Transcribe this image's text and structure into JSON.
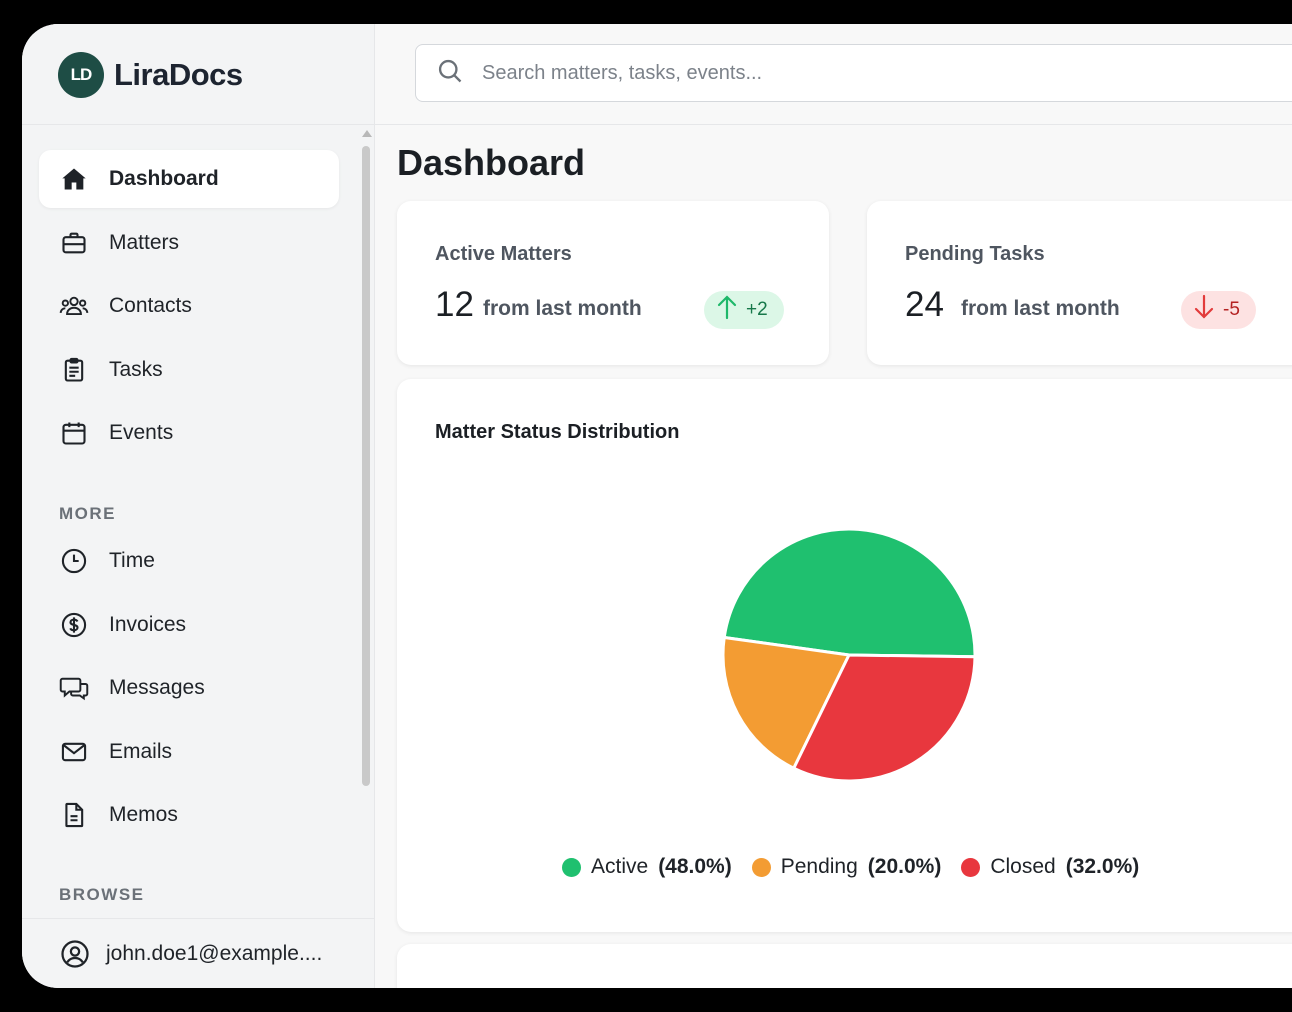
{
  "app": {
    "logo_text": "LD",
    "name": "LiraDocs"
  },
  "search": {
    "placeholder": "Search matters, tasks, events..."
  },
  "sidebar": {
    "primary": [
      {
        "label": "Dashboard",
        "icon": "home-icon",
        "active": true
      },
      {
        "label": "Matters",
        "icon": "briefcase-icon"
      },
      {
        "label": "Contacts",
        "icon": "people-icon"
      },
      {
        "label": "Tasks",
        "icon": "clipboard-icon"
      },
      {
        "label": "Events",
        "icon": "calendar-icon"
      }
    ],
    "more_label": "MORE",
    "more": [
      {
        "label": "Time",
        "icon": "clock-icon"
      },
      {
        "label": "Invoices",
        "icon": "dollar-icon"
      },
      {
        "label": "Messages",
        "icon": "chat-icon"
      },
      {
        "label": "Emails",
        "icon": "mail-icon"
      },
      {
        "label": "Memos",
        "icon": "document-icon"
      }
    ],
    "browse_label": "BROWSE",
    "user": {
      "email": "john.doe1@example....",
      "icon": "user-circle-icon"
    }
  },
  "main": {
    "title": "Dashboard",
    "stats": [
      {
        "label": "Active Matters",
        "value": "12",
        "sub": "from last month",
        "delta": "+2",
        "direction": "up"
      },
      {
        "label": "Pending Tasks",
        "value": "24",
        "sub": "from last month",
        "delta": "-5",
        "direction": "down"
      }
    ]
  },
  "chart_data": {
    "type": "pie",
    "title": "Matter Status Distribution",
    "categories": [
      "Active",
      "Pending",
      "Closed"
    ],
    "values": [
      48.0,
      20.0,
      32.0
    ],
    "labels": [
      "(48.0%)",
      "(20.0%)",
      "(32.0%)"
    ],
    "colors": [
      "#1fc06f",
      "#f39c33",
      "#e8373e"
    ],
    "legend_position": "bottom"
  }
}
